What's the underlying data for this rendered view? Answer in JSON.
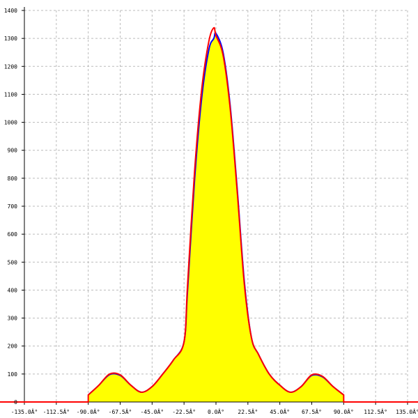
{
  "chart_data": {
    "type": "area",
    "xlim": [
      -135,
      135
    ],
    "ylim": [
      0,
      1400
    ],
    "grid": true,
    "x_tick_labels": [
      "-135.0Â°",
      "-112.5Â°",
      "-90.0Â°",
      "-67.5Â°",
      "-45.0Â°",
      "-22.5Â°",
      "0.0Â°",
      "22.5Â°",
      "45.0Â°",
      "67.5Â°",
      "90.0Â°",
      "112.5Â°",
      "135.0Â°"
    ],
    "x_ticks": [
      -135,
      -112.5,
      -90,
      -67.5,
      -45,
      -22.5,
      0,
      22.5,
      45,
      67.5,
      90,
      112.5,
      135
    ],
    "y_ticks": [
      0,
      100,
      200,
      300,
      400,
      500,
      600,
      700,
      800,
      900,
      1000,
      1100,
      1200,
      1300,
      1400
    ],
    "series": [
      {
        "color": "#0000ff",
        "fill": "#ffff00",
        "x": [
          -90,
          -82.5,
          -75,
          -67.5,
          -60,
          -52.5,
          -45,
          -37.5,
          -30,
          -22.5,
          -20,
          -15,
          -10,
          -5,
          -1.5,
          0,
          5,
          10,
          15,
          20,
          25,
          30,
          37.5,
          45,
          52.5,
          60,
          67.5,
          75,
          82.5,
          90
        ],
        "y": [
          25,
          60,
          98,
          95,
          60,
          35,
          55,
          100,
          150,
          215,
          400,
          800,
          1090,
          1260,
          1300,
          1318,
          1250,
          1060,
          760,
          430,
          230,
          170,
          100,
          60,
          35,
          55,
          95,
          90,
          55,
          25
        ]
      },
      {
        "color": "#ff0000",
        "x": [
          -90,
          -82.5,
          -75,
          -67.5,
          -60,
          -52.5,
          -45,
          -37.5,
          -30,
          -22.5,
          -20,
          -15,
          -10,
          -5,
          -1.5,
          0,
          5,
          10,
          15,
          20,
          25,
          30,
          37.5,
          45,
          52.5,
          60,
          67.5,
          75,
          82.5,
          90
        ],
        "y": [
          25,
          60,
          100,
          97,
          60,
          35,
          55,
          100,
          150,
          215,
          420,
          830,
          1120,
          1290,
          1338,
          1310,
          1240,
          1050,
          750,
          420,
          230,
          170,
          100,
          60,
          35,
          55,
          97,
          92,
          55,
          25
        ]
      }
    ]
  }
}
